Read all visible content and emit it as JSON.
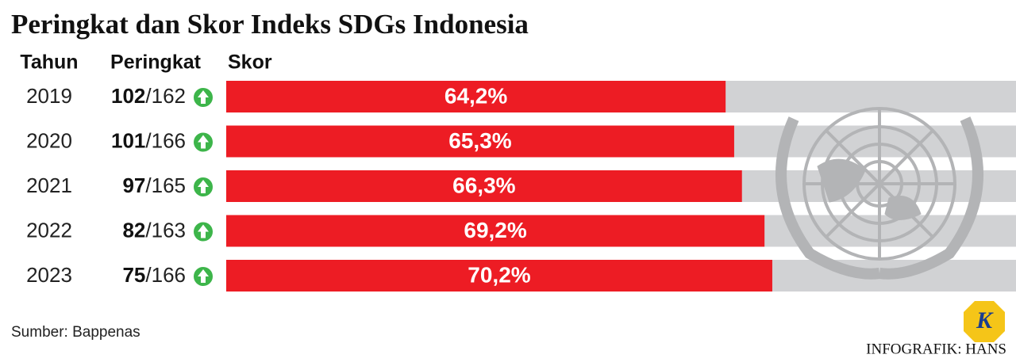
{
  "chart_data": {
    "type": "bar",
    "title": "Peringkat dan Skor Indeks SDGs Indonesia",
    "column_headers": [
      "Tahun",
      "Peringkat",
      "Skor"
    ],
    "categories": [
      "2019",
      "2020",
      "2021",
      "2022",
      "2023"
    ],
    "ranks": [
      102,
      101,
      97,
      82,
      75
    ],
    "rank_totals": [
      "/162",
      "/166",
      "/165",
      "/163",
      "/166"
    ],
    "values": [
      64.2,
      65.3,
      66.3,
      69.2,
      70.2
    ],
    "value_labels": [
      "64,2%",
      "65,3%",
      "66,3%",
      "69,2%",
      "70,2%"
    ],
    "xlim": [
      0,
      100
    ],
    "color": "#ed1c24",
    "track_color": "#d1d2d4",
    "arrow_color": "#3db54a",
    "source": "Sumber: Bappenas",
    "credit": "INFOGRAFIK: HANS",
    "logo": "K"
  }
}
